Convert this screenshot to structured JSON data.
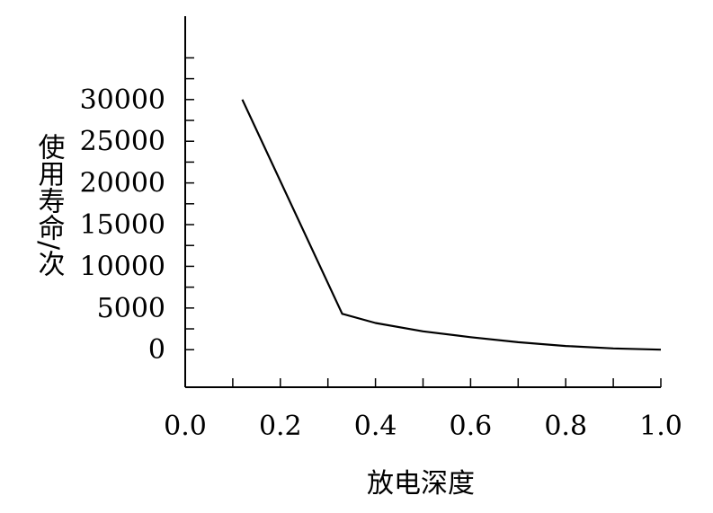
{
  "chart_data": {
    "type": "line",
    "title": "",
    "xlabel": "放电深度",
    "ylabel": "使用寿命/次",
    "xlim": [
      0.0,
      1.0
    ],
    "ylim": [
      -4500,
      40000
    ],
    "x_ticks": [
      0.0,
      0.2,
      0.4,
      0.6,
      0.8,
      1.0
    ],
    "x_tick_labels": [
      "0.0",
      "0.2",
      "0.4",
      "0.6",
      "0.8",
      "1.0"
    ],
    "y_ticks": [
      0,
      5000,
      10000,
      15000,
      20000,
      25000,
      30000
    ],
    "y_tick_labels": [
      "0",
      "5000",
      "10000",
      "15000",
      "20000",
      "25000",
      "30000"
    ],
    "grid": false,
    "legend": "none",
    "series": [
      {
        "color": "#000000",
        "points": [
          {
            "x": 0.12,
            "y": 30000
          },
          {
            "x": 0.33,
            "y": 4300
          },
          {
            "x": 0.4,
            "y": 3200
          },
          {
            "x": 0.5,
            "y": 2200
          },
          {
            "x": 0.6,
            "y": 1500
          },
          {
            "x": 0.7,
            "y": 900
          },
          {
            "x": 0.8,
            "y": 450
          },
          {
            "x": 0.9,
            "y": 150
          },
          {
            "x": 1.0,
            "y": 0
          }
        ]
      }
    ]
  }
}
